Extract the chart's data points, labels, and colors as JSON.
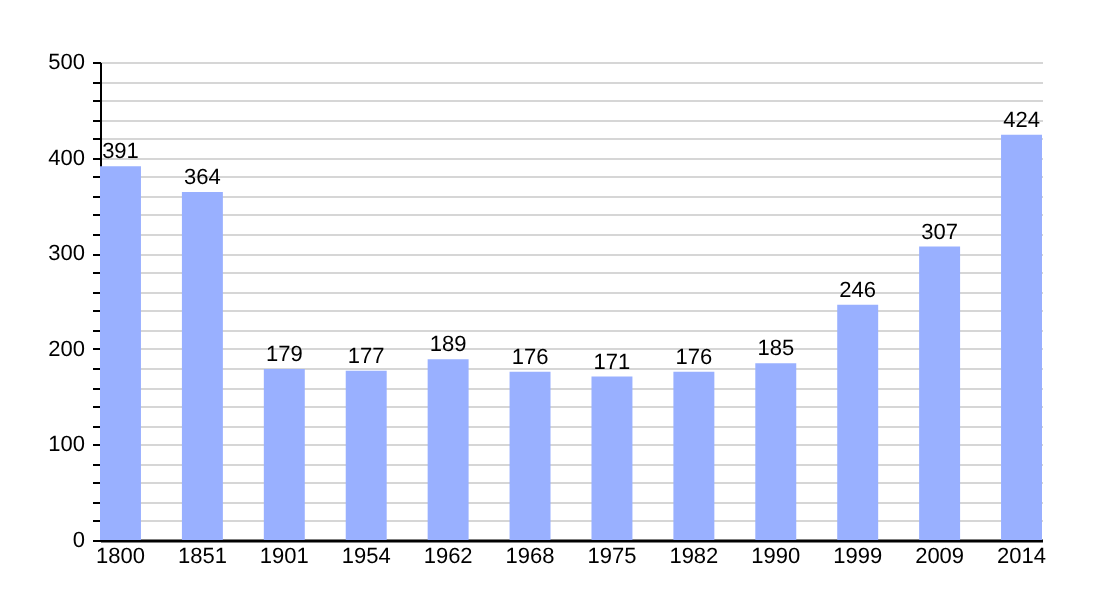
{
  "chart_data": {
    "type": "bar",
    "categories": [
      "1800",
      "1851",
      "1901",
      "1954",
      "1962",
      "1968",
      "1975",
      "1982",
      "1990",
      "1999",
      "2009",
      "2014"
    ],
    "values": [
      391,
      364,
      179,
      177,
      189,
      176,
      171,
      176,
      185,
      246,
      307,
      424
    ],
    "color": "#99b0ff",
    "ylim": [
      0,
      500
    ],
    "yticks": [
      0,
      {
        "value": 20,
        "label": null
      },
      {
        "value": 40,
        "label": null
      },
      {
        "value": 60,
        "label": null
      },
      {
        "value": 80,
        "label": null
      },
      100,
      {
        "value": 120,
        "label": null
      },
      {
        "value": 140,
        "label": null
      },
      {
        "value": 160,
        "label": null
      },
      {
        "value": 180,
        "label": null
      },
      200,
      {
        "value": 220,
        "label": null
      },
      {
        "value": 240,
        "label": null
      },
      {
        "value": 260,
        "label": null
      },
      {
        "value": 280,
        "label": null
      },
      300,
      {
        "value": 320,
        "label": null
      },
      {
        "value": 340,
        "label": null
      },
      {
        "value": 360,
        "label": null
      },
      {
        "value": 380,
        "label": null
      },
      400,
      {
        "value": 420,
        "label": null
      },
      {
        "value": 440,
        "label": null
      },
      {
        "value": 460,
        "label": null
      },
      {
        "value": 480,
        "label": null
      },
      500
    ],
    "grid": "y",
    "data_labels": true
  }
}
